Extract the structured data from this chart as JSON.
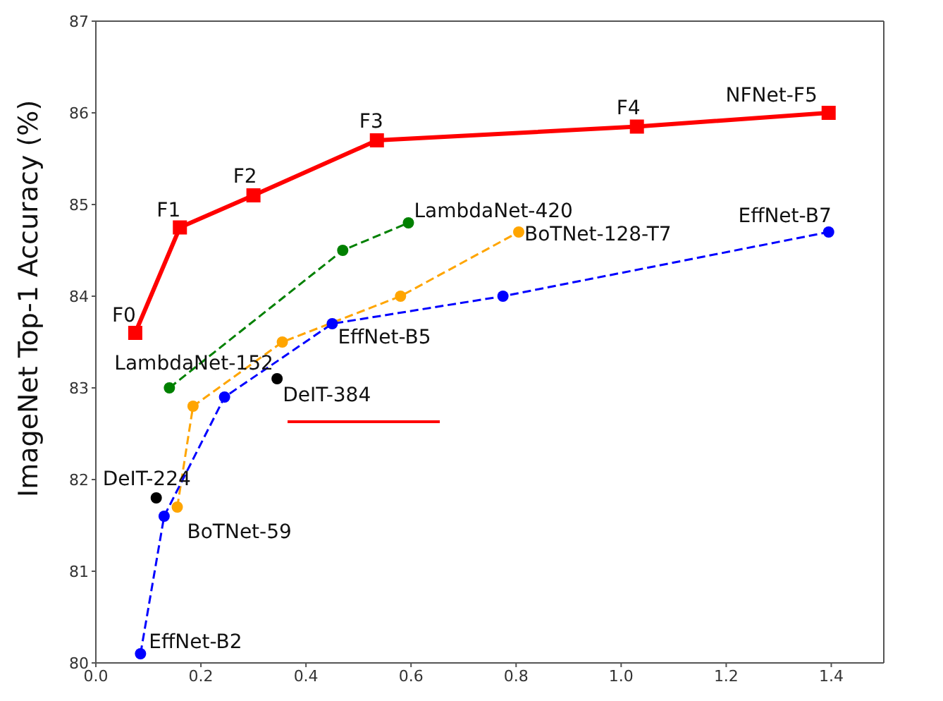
{
  "chart_data": {
    "type": "line",
    "ylabel": "ImageNet Top-1 Accuracy (%)",
    "xlim": [
      0,
      1.5
    ],
    "xticks": [
      {
        "value": 0,
        "label": "0.0"
      },
      0.2,
      0.4,
      0.6,
      0.8,
      {
        "value": 1,
        "label": "1.0"
      },
      1.2,
      1.4
    ],
    "ylim": [
      80,
      87
    ],
    "yticks": [
      80,
      81,
      82,
      83,
      84,
      85,
      86,
      87
    ],
    "grid": false,
    "series": [
      {
        "type": "line",
        "color": "#ff0000",
        "marker": "square",
        "line_style": "solid",
        "x": [
          0.075,
          0.16,
          0.3,
          0.535,
          1.03,
          1.395
        ],
        "values": [
          83.6,
          84.75,
          85.1,
          85.7,
          85.85,
          86.0
        ]
      },
      {
        "type": "line",
        "color": "#008000",
        "marker": "circle",
        "line_style": "dashed",
        "x": [
          0.14,
          0.47,
          0.595
        ],
        "values": [
          83.0,
          84.5,
          84.8
        ]
      },
      {
        "type": "line",
        "color": "#ffa500",
        "marker": "circle",
        "line_style": "dashed",
        "x": [
          0.155,
          0.185,
          0.355,
          0.58,
          0.805
        ],
        "values": [
          81.7,
          82.8,
          83.5,
          84.0,
          84.7
        ]
      },
      {
        "type": "line",
        "color": "#0000ff",
        "marker": "circle",
        "line_style": "dashed",
        "x": [
          0.085,
          0.13,
          0.245,
          0.45,
          0.775,
          1.395
        ],
        "values": [
          80.1,
          81.6,
          82.9,
          83.7,
          84.0,
          84.7
        ]
      },
      {
        "type": "scatter",
        "color": "#000000",
        "marker": "circle",
        "x": [
          0.115,
          0.345
        ],
        "values": [
          81.8,
          83.1
        ]
      }
    ],
    "annotations": [
      {
        "text": "F0",
        "x": 0.075,
        "y": 83.6
      },
      {
        "text": "F1",
        "x": 0.16,
        "y": 84.75
      },
      {
        "text": "F2",
        "x": 0.3,
        "y": 85.1
      },
      {
        "text": "F3",
        "x": 0.535,
        "y": 85.7
      },
      {
        "text": "F4",
        "x": 1.03,
        "y": 85.85
      },
      {
        "text": "NFNet-F5",
        "x": 1.395,
        "y": 86.0
      },
      {
        "text": "LambdaNet-420",
        "x": 0.595,
        "y": 84.8
      },
      {
        "text": "BoTNet-128-T7",
        "x": 0.805,
        "y": 84.7
      },
      {
        "text": "EffNet-B7",
        "x": 1.395,
        "y": 84.7
      },
      {
        "text": "EffNet-B5",
        "x": 0.45,
        "y": 83.7
      },
      {
        "text": "LambdaNet-152",
        "x": 0.14,
        "y": 83.0
      },
      {
        "text": "DeIT-384",
        "x": 0.345,
        "y": 83.1
      },
      {
        "text": "DeIT-224",
        "x": 0.115,
        "y": 81.8
      },
      {
        "text": "BoTNet-59",
        "x": 0.155,
        "y": 81.7
      },
      {
        "text": "EffNet-B2",
        "x": 0.085,
        "y": 80.1
      }
    ]
  }
}
